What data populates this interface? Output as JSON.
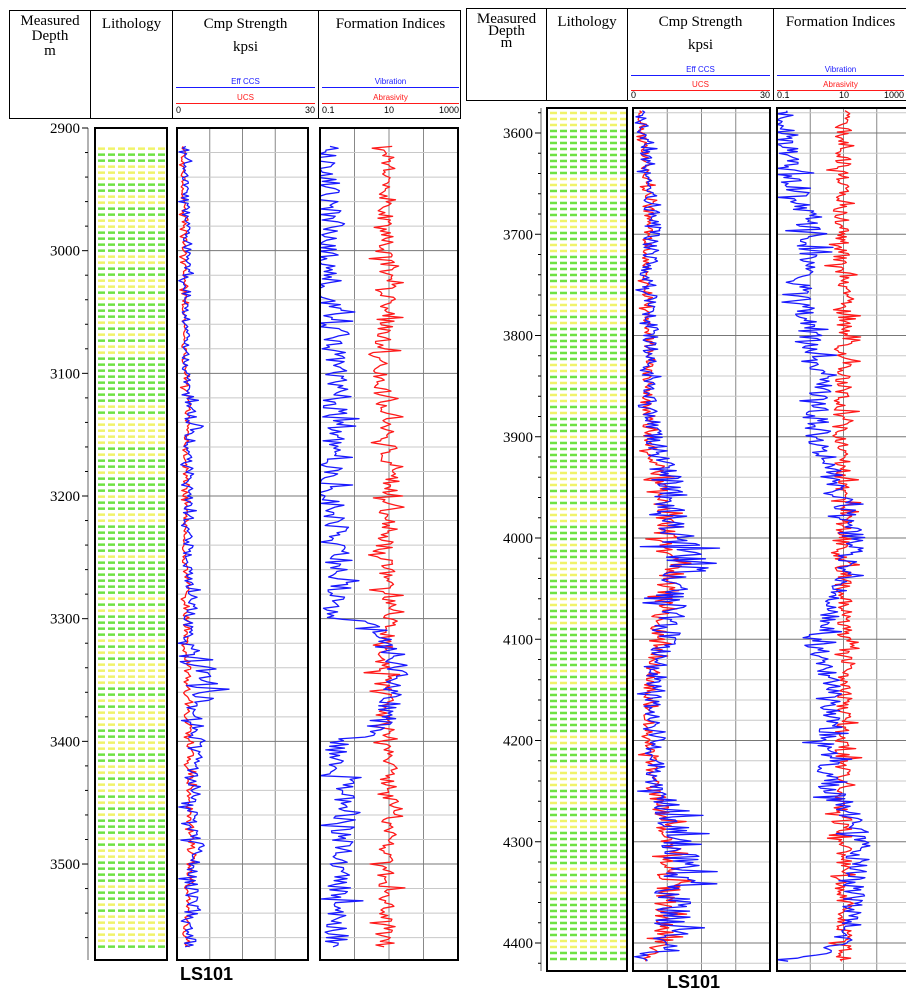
{
  "headers": {
    "depth": {
      "line1": "Measured",
      "line2": "Depth",
      "line3": "m"
    },
    "lithology": "Lithology",
    "strength": {
      "title": "Cmp Strength",
      "unit": "kpsi",
      "curve_blue": "Eff CCS",
      "curve_red": "UCS",
      "scale_min": "0",
      "scale_max": "30"
    },
    "indices": {
      "title": "Formation Indices",
      "curve_blue": "Vibration",
      "curve_red": "Abrasivity",
      "scale_min": "0.1",
      "scale_mid": "10",
      "scale_max": "1000"
    }
  },
  "colors": {
    "blue_curve": "#1a1aff",
    "red_curve": "#ff1a1a",
    "lith_green": "#55dd22",
    "lith_yellow": "#eef25a",
    "grid": "#888888"
  },
  "panels": [
    {
      "well_label": "LS101",
      "depth_ticks": [
        "2900",
        "3000",
        "3100",
        "3200",
        "3300",
        "3400",
        "3500"
      ]
    },
    {
      "well_label": "LS101",
      "depth_ticks": [
        "3600",
        "3700",
        "3800",
        "3900",
        "4000",
        "4100",
        "4200",
        "4300",
        "4400"
      ]
    }
  ],
  "chart_data": [
    {
      "type": "line",
      "title": "",
      "ylabel": "Measured Depth m",
      "ylim": [
        2900,
        3570
      ],
      "tracks": [
        {
          "name": "Cmp Strength",
          "xlabel": "kpsi",
          "xlim": [
            0,
            30
          ],
          "scale": "linear",
          "series": [
            {
              "name": "Eff CCS",
              "color": "#1a1aff",
              "depth": [
                2920,
                2950,
                3000,
                3050,
                3100,
                3130,
                3160,
                3200,
                3250,
                3290,
                3320,
                3345,
                3380,
                3420,
                3450,
                3490,
                3520,
                3565
              ],
              "values": [
                2.0,
                1.8,
                2.5,
                2.0,
                2.2,
                3.5,
                2.8,
                2.5,
                2.5,
                3.0,
                2.5,
                9.0,
                3.0,
                4.5,
                3.5,
                4.5,
                3.5,
                3.0
              ]
            },
            {
              "name": "UCS",
              "color": "#ff1a1a",
              "depth": [
                2920,
                2950,
                3000,
                3050,
                3100,
                3130,
                3160,
                3200,
                3250,
                3290,
                3320,
                3345,
                3380,
                3420,
                3450,
                3490,
                3520,
                3565
              ],
              "values": [
                1.5,
                1.4,
                1.8,
                1.6,
                1.7,
                2.5,
                2.0,
                2.0,
                1.8,
                2.2,
                1.9,
                2.5,
                2.2,
                3.0,
                2.6,
                3.2,
                2.6,
                2.2
              ]
            }
          ]
        },
        {
          "name": "Formation Indices",
          "xlim": [
            0.1,
            1000
          ],
          "scale": "log",
          "series": [
            {
              "name": "Vibration",
              "color": "#1a1aff",
              "depth": [
                2920,
                2980,
                3030,
                3100,
                3150,
                3200,
                3250,
                3300,
                3345,
                3400,
                3450,
                3500,
                3565
              ],
              "values": [
                0.15,
                0.2,
                0.15,
                0.3,
                0.25,
                0.2,
                0.4,
                0.3,
                20,
                0.3,
                0.5,
                0.4,
                0.3
              ]
            },
            {
              "name": "Abrasivity",
              "color": "#ff1a1a",
              "depth": [
                2920,
                2980,
                3030,
                3100,
                3150,
                3200,
                3250,
                3300,
                3345,
                3400,
                3450,
                3500,
                3565
              ],
              "values": [
                10,
                8,
                10,
                5,
                10,
                10,
                8,
                10,
                6,
                10,
                10,
                8,
                10
              ]
            }
          ]
        }
      ],
      "grid": true
    },
    {
      "type": "line",
      "title": "",
      "ylabel": "Measured Depth m",
      "ylim": [
        3575,
        4420
      ],
      "tracks": [
        {
          "name": "Cmp Strength",
          "xlabel": "kpsi",
          "xlim": [
            0,
            30
          ],
          "scale": "linear",
          "series": [
            {
              "name": "Eff CCS",
              "color": "#1a1aff",
              "depth": [
                3580,
                3620,
                3680,
                3740,
                3800,
                3850,
                3900,
                3950,
                4000,
                4030,
                4050,
                4100,
                4150,
                4200,
                4250,
                4280,
                4310,
                4340,
                4370,
                4400,
                4415
              ],
              "values": [
                2.0,
                3.0,
                4.5,
                3.5,
                4.0,
                3.5,
                4.5,
                8.0,
                9.5,
                12.0,
                9.0,
                7.0,
                4.5,
                4.0,
                5.5,
                9.0,
                12.0,
                10.0,
                9.0,
                8.0,
                3.0
              ]
            },
            {
              "name": "UCS",
              "color": "#ff1a1a",
              "depth": [
                3580,
                3620,
                3680,
                3740,
                3800,
                3850,
                3900,
                3950,
                4000,
                4030,
                4050,
                4100,
                4150,
                4200,
                4250,
                4280,
                4310,
                4340,
                4370,
                4400,
                4415
              ],
              "values": [
                1.5,
                2.5,
                3.5,
                3.0,
                3.5,
                3.0,
                3.5,
                6.0,
                7.0,
                8.0,
                7.0,
                5.5,
                3.5,
                3.5,
                4.5,
                7.0,
                9.0,
                8.0,
                7.0,
                6.5,
                2.5
              ]
            }
          ]
        },
        {
          "name": "Formation Indices",
          "xlim": [
            0.1,
            1000
          ],
          "scale": "log",
          "series": [
            {
              "name": "Vibration",
              "color": "#1a1aff",
              "depth": [
                3580,
                3650,
                3700,
                3760,
                3800,
                3850,
                3900,
                3950,
                4000,
                4050,
                4100,
                4150,
                4200,
                4250,
                4300,
                4350,
                4400,
                4415
              ],
              "values": [
                0.15,
                0.3,
                1.0,
                0.5,
                1.0,
                2.0,
                1.5,
                5.0,
                20,
                8.0,
                1.0,
                5.0,
                3.0,
                4.0,
                30,
                20,
                8.0,
                0.3
              ]
            },
            {
              "name": "Abrasivity",
              "color": "#ff1a1a",
              "depth": [
                3580,
                3650,
                3700,
                3760,
                3800,
                3850,
                3900,
                3950,
                4000,
                4050,
                4100,
                4150,
                4200,
                4250,
                4300,
                4350,
                4400,
                4415
              ],
              "values": [
                10,
                10,
                8,
                10,
                10,
                10,
                8,
                10,
                10,
                10,
                10,
                10,
                10,
                10,
                10,
                10,
                10,
                10
              ]
            }
          ]
        }
      ],
      "grid": true
    }
  ]
}
